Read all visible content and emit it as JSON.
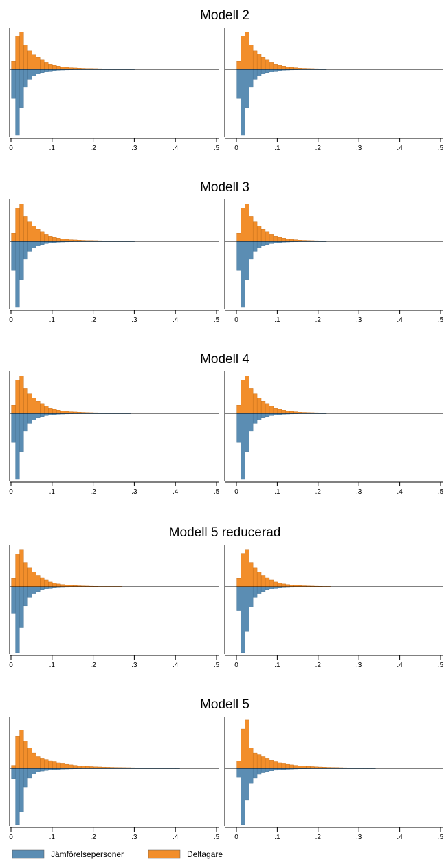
{
  "colors": {
    "comparison": "#5b8db3",
    "participants": "#f28e2b",
    "axis": "#000000",
    "bar_outline_comparison": "#3f6f94",
    "bar_outline_participants": "#c46a12"
  },
  "legend": {
    "position": "bottom-left",
    "items": [
      {
        "label": "Jämförelsepersoner",
        "color": "#5b8db3"
      },
      {
        "label": "Deltagare",
        "color": "#f28e2b"
      }
    ]
  },
  "chart_data": [
    {
      "type": "bar",
      "title": "Modell 2",
      "panels": [
        {
          "panel": "left",
          "xlim": [
            0,
            0.5
          ],
          "xticks": [
            "0",
            ".1",
            ".2",
            ".3",
            ".4",
            ".5"
          ],
          "bin_width": 0.01,
          "series": [
            {
              "name": "Deltagare",
              "direction": "up",
              "values": [
                0.2,
                0.82,
                0.92,
                0.6,
                0.46,
                0.36,
                0.3,
                0.24,
                0.18,
                0.13,
                0.1,
                0.08,
                0.06,
                0.05,
                0.04,
                0.035,
                0.03,
                0.025,
                0.02,
                0.02,
                0.018,
                0.015,
                0.012,
                0.01,
                0.01,
                0.009,
                0.008,
                0.007,
                0.006,
                0.006,
                0.005,
                0.004,
                0.004
              ]
            },
            {
              "name": "Jämförelsepersoner",
              "direction": "down",
              "values": [
                0.44,
                1.0,
                0.58,
                0.27,
                0.15,
                0.1,
                0.07,
                0.05,
                0.035,
                0.025,
                0.018,
                0.014,
                0.011,
                0.009,
                0.007,
                0.006,
                0.005,
                0.004,
                0.004,
                0.003,
                0.003,
                0.003,
                0.002,
                0.002,
                0.002,
                0.002,
                0.002,
                0.001,
                0.001,
                0.001
              ]
            }
          ]
        },
        {
          "panel": "right",
          "xlim": [
            0,
            0.5
          ],
          "xticks": [
            "0",
            ".1",
            ".2",
            ".3",
            ".4",
            ".5"
          ],
          "bin_width": 0.01,
          "series": [
            {
              "name": "Deltagare",
              "direction": "up",
              "values": [
                0.2,
                0.82,
                0.92,
                0.6,
                0.46,
                0.38,
                0.3,
                0.24,
                0.18,
                0.13,
                0.1,
                0.08,
                0.06,
                0.05,
                0.04,
                0.03,
                0.025,
                0.02,
                0.018,
                0.015,
                0.012,
                0.01,
                0.008
              ]
            },
            {
              "name": "Jämförelsepersoner",
              "direction": "down",
              "values": [
                0.44,
                1.0,
                0.58,
                0.27,
                0.15,
                0.1,
                0.07,
                0.05,
                0.035,
                0.025,
                0.018,
                0.014,
                0.011,
                0.009,
                0.007,
                0.006,
                0.005,
                0.004,
                0.003,
                0.003,
                0.002,
                0.002
              ]
            }
          ]
        }
      ]
    },
    {
      "type": "bar",
      "title": "Modell 3",
      "panels": [
        {
          "panel": "left",
          "xlim": [
            0,
            0.5
          ],
          "xticks": [
            "0",
            ".1",
            ".2",
            ".3",
            ".4",
            ".5"
          ],
          "bin_width": 0.01,
          "series": [
            {
              "name": "Deltagare",
              "direction": "up",
              "values": [
                0.2,
                0.82,
                0.92,
                0.62,
                0.48,
                0.38,
                0.3,
                0.24,
                0.18,
                0.13,
                0.1,
                0.08,
                0.06,
                0.05,
                0.04,
                0.035,
                0.03,
                0.025,
                0.02,
                0.02,
                0.018,
                0.015,
                0.012,
                0.01,
                0.01,
                0.009,
                0.008,
                0.007,
                0.006,
                0.006,
                0.005,
                0.004,
                0.004
              ]
            },
            {
              "name": "Jämförelsepersoner",
              "direction": "down",
              "values": [
                0.44,
                1.0,
                0.58,
                0.27,
                0.15,
                0.1,
                0.07,
                0.05,
                0.035,
                0.025,
                0.018,
                0.014,
                0.011,
                0.009,
                0.007,
                0.006,
                0.005,
                0.004,
                0.004,
                0.003,
                0.003,
                0.003,
                0.002,
                0.002,
                0.002,
                0.002,
                0.002,
                0.001,
                0.001,
                0.001
              ]
            }
          ]
        },
        {
          "panel": "right",
          "xlim": [
            0,
            0.5
          ],
          "xticks": [
            "0",
            ".1",
            ".2",
            ".3",
            ".4",
            ".5"
          ],
          "bin_width": 0.01,
          "series": [
            {
              "name": "Deltagare",
              "direction": "up",
              "values": [
                0.2,
                0.82,
                0.92,
                0.62,
                0.48,
                0.38,
                0.3,
                0.24,
                0.18,
                0.13,
                0.1,
                0.08,
                0.06,
                0.05,
                0.04,
                0.03,
                0.025,
                0.02,
                0.018,
                0.015,
                0.012,
                0.01,
                0.008
              ]
            },
            {
              "name": "Jämförelsepersoner",
              "direction": "down",
              "values": [
                0.44,
                1.0,
                0.58,
                0.27,
                0.15,
                0.1,
                0.07,
                0.05,
                0.035,
                0.025,
                0.018,
                0.014,
                0.011,
                0.009,
                0.007,
                0.006,
                0.005,
                0.004,
                0.003,
                0.003,
                0.002,
                0.002
              ]
            }
          ]
        }
      ]
    },
    {
      "type": "bar",
      "title": "Modell 4",
      "panels": [
        {
          "panel": "left",
          "xlim": [
            0,
            0.5
          ],
          "xticks": [
            "0",
            ".1",
            ".2",
            ".3",
            ".4",
            ".5"
          ],
          "bin_width": 0.01,
          "series": [
            {
              "name": "Deltagare",
              "direction": "up",
              "values": [
                0.2,
                0.82,
                0.92,
                0.62,
                0.48,
                0.38,
                0.3,
                0.24,
                0.18,
                0.13,
                0.1,
                0.08,
                0.06,
                0.05,
                0.04,
                0.035,
                0.03,
                0.025,
                0.02,
                0.018,
                0.015,
                0.012,
                0.01,
                0.009,
                0.008,
                0.007,
                0.006,
                0.005,
                0.005,
                0.004,
                0.004,
                0.003
              ]
            },
            {
              "name": "Jämförelsepersoner",
              "direction": "down",
              "values": [
                0.44,
                1.0,
                0.58,
                0.27,
                0.15,
                0.1,
                0.07,
                0.05,
                0.035,
                0.025,
                0.018,
                0.014,
                0.011,
                0.009,
                0.007,
                0.006,
                0.005,
                0.004,
                0.004,
                0.003,
                0.003,
                0.003,
                0.002,
                0.002,
                0.002,
                0.002,
                0.001,
                0.001,
                0.001
              ]
            }
          ]
        },
        {
          "panel": "right",
          "xlim": [
            0,
            0.5
          ],
          "xticks": [
            "0",
            ".1",
            ".2",
            ".3",
            ".4",
            ".5"
          ],
          "bin_width": 0.01,
          "series": [
            {
              "name": "Deltagare",
              "direction": "up",
              "values": [
                0.2,
                0.82,
                0.92,
                0.62,
                0.48,
                0.38,
                0.3,
                0.24,
                0.18,
                0.13,
                0.1,
                0.08,
                0.06,
                0.05,
                0.04,
                0.03,
                0.025,
                0.02,
                0.018,
                0.015,
                0.012,
                0.01,
                0.008
              ]
            },
            {
              "name": "Jämförelsepersoner",
              "direction": "down",
              "values": [
                0.44,
                1.0,
                0.58,
                0.27,
                0.15,
                0.1,
                0.07,
                0.05,
                0.035,
                0.025,
                0.018,
                0.014,
                0.011,
                0.009,
                0.007,
                0.006,
                0.005,
                0.004,
                0.003,
                0.003,
                0.002,
                0.002
              ]
            }
          ]
        }
      ]
    },
    {
      "type": "bar",
      "title": "Modell 5 reducerad",
      "panels": [
        {
          "panel": "left",
          "xlim": [
            0,
            0.5
          ],
          "xticks": [
            "0",
            ".1",
            ".2",
            ".3",
            ".4",
            ".5"
          ],
          "bin_width": 0.01,
          "series": [
            {
              "name": "Deltagare",
              "direction": "up",
              "values": [
                0.2,
                0.8,
                0.92,
                0.6,
                0.46,
                0.36,
                0.28,
                0.22,
                0.17,
                0.12,
                0.09,
                0.07,
                0.055,
                0.045,
                0.035,
                0.03,
                0.025,
                0.02,
                0.018,
                0.015,
                0.012,
                0.01,
                0.009,
                0.008,
                0.007,
                0.006,
                0.005
              ]
            },
            {
              "name": "Jämförelsepersoner",
              "direction": "down",
              "values": [
                0.4,
                1.0,
                0.62,
                0.29,
                0.16,
                0.1,
                0.07,
                0.05,
                0.035,
                0.025,
                0.018,
                0.014,
                0.011,
                0.009,
                0.007,
                0.006,
                0.005,
                0.004,
                0.004,
                0.003,
                0.003,
                0.002,
                0.002,
                0.002,
                0.002,
                0.001
              ]
            }
          ]
        },
        {
          "panel": "right",
          "xlim": [
            0,
            0.5
          ],
          "xticks": [
            "0",
            ".1",
            ".2",
            ".3",
            ".4",
            ".5"
          ],
          "bin_width": 0.01,
          "series": [
            {
              "name": "Deltagare",
              "direction": "up",
              "values": [
                0.2,
                0.82,
                0.92,
                0.6,
                0.46,
                0.36,
                0.28,
                0.22,
                0.17,
                0.12,
                0.09,
                0.07,
                0.055,
                0.045,
                0.035,
                0.03,
                0.025,
                0.02,
                0.018,
                0.015,
                0.012,
                0.01,
                0.009
              ]
            },
            {
              "name": "Jämförelsepersoner",
              "direction": "down",
              "values": [
                0.36,
                1.0,
                0.68,
                0.31,
                0.16,
                0.1,
                0.07,
                0.05,
                0.035,
                0.025,
                0.018,
                0.014,
                0.011,
                0.009,
                0.007,
                0.006,
                0.005,
                0.004,
                0.003,
                0.003,
                0.002,
                0.002
              ]
            }
          ]
        }
      ]
    },
    {
      "type": "bar",
      "title": "Modell 5",
      "panels": [
        {
          "panel": "left",
          "xlim": [
            0,
            0.5
          ],
          "xticks": [
            "0",
            ".1",
            ".2",
            ".3",
            ".4",
            ".5"
          ],
          "bin_width": 0.01,
          "series": [
            {
              "name": "Deltagare",
              "direction": "up",
              "values": [
                0.06,
                0.64,
                0.76,
                0.54,
                0.4,
                0.3,
                0.24,
                0.2,
                0.17,
                0.15,
                0.13,
                0.11,
                0.09,
                0.08,
                0.07,
                0.06,
                0.05,
                0.045,
                0.04,
                0.035,
                0.03,
                0.028,
                0.025,
                0.022,
                0.02,
                0.018,
                0.016,
                0.015,
                0.014,
                0.012,
                0.011,
                0.01,
                0.009,
                0.009,
                0.008,
                0.007,
                0.007,
                0.006,
                0.006,
                0.005,
                0.005
              ]
            },
            {
              "name": "Jämförelsepersoner",
              "direction": "down",
              "values": [
                0.18,
                1.0,
                0.77,
                0.33,
                0.17,
                0.1,
                0.07,
                0.05,
                0.04,
                0.03,
                0.024,
                0.02,
                0.016,
                0.013,
                0.011,
                0.009,
                0.008,
                0.007,
                0.006,
                0.005,
                0.005,
                0.004,
                0.004,
                0.003,
                0.003,
                0.003,
                0.002,
                0.002,
                0.002,
                0.002,
                0.002,
                0.001,
                0.001,
                0.001,
                0.001,
                0.001,
                0.001,
                0.001,
                0.001,
                0.001,
                0.001
              ]
            }
          ]
        },
        {
          "panel": "right",
          "xlim": [
            0,
            0.5
          ],
          "xticks": [
            "0",
            ".1",
            ".2",
            ".3",
            ".4",
            ".5"
          ],
          "bin_width": 0.01,
          "series": [
            {
              "name": "Deltagare",
              "direction": "up",
              "values": [
                0.14,
                0.78,
                0.96,
                0.4,
                0.3,
                0.28,
                0.24,
                0.2,
                0.16,
                0.13,
                0.11,
                0.09,
                0.08,
                0.07,
                0.06,
                0.05,
                0.045,
                0.04,
                0.035,
                0.03,
                0.027,
                0.024,
                0.02,
                0.018,
                0.016,
                0.014,
                0.012,
                0.011,
                0.01,
                0.009,
                0.008,
                0.007,
                0.006,
                0.005
              ]
            },
            {
              "name": "Jämförelsepersoner",
              "direction": "down",
              "values": [
                0.16,
                1.0,
                0.56,
                0.27,
                0.17,
                0.11,
                0.08,
                0.06,
                0.045,
                0.035,
                0.028,
                0.022,
                0.018,
                0.015,
                0.012,
                0.01,
                0.009,
                0.008,
                0.007,
                0.006,
                0.005,
                0.005,
                0.004,
                0.004,
                0.003,
                0.003,
                0.003,
                0.002,
                0.002,
                0.002,
                0.002,
                0.002,
                0.001,
                0.001
              ]
            }
          ]
        }
      ]
    }
  ]
}
